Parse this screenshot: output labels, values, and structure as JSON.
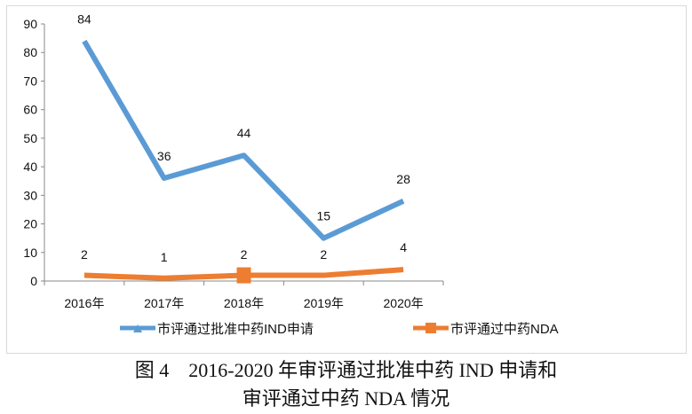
{
  "chart_data": {
    "type": "line",
    "categories": [
      "2016年",
      "2017年",
      "2018年",
      "2019年",
      "2020年"
    ],
    "ylim": [
      0,
      90
    ],
    "yticks": [
      0,
      10,
      20,
      30,
      40,
      50,
      60,
      70,
      80,
      90
    ],
    "grid": false,
    "legend": "bottom",
    "series": [
      {
        "name": "市评通过批准中药IND申请",
        "values": [
          84,
          36,
          44,
          15,
          28
        ],
        "color": "#5b9bd5",
        "marker": "triangle"
      },
      {
        "name": "市评通过中药NDA",
        "values": [
          2,
          1,
          2,
          2,
          4
        ],
        "color": "#ed7d31",
        "marker": "square"
      }
    ]
  },
  "caption": {
    "line1": "图 4　2016-2020 年审评通过批准中药 IND 申请和",
    "line2": "审评通过中药 NDA 情况"
  }
}
